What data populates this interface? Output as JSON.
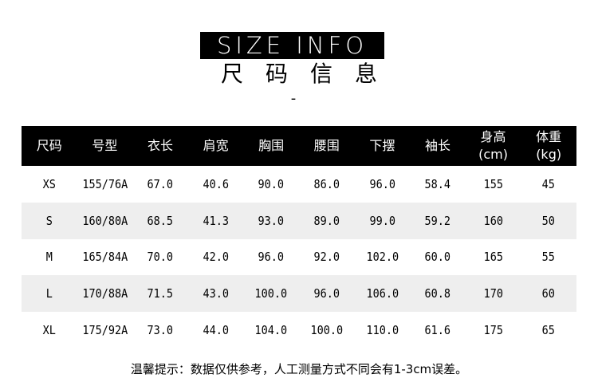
{
  "title_en": "SIZE INFO",
  "title_cn": "尺码信息",
  "separator": "-",
  "table": {
    "headers": [
      {
        "line1": "尺码",
        "line2": ""
      },
      {
        "line1": "号型",
        "line2": ""
      },
      {
        "line1": "衣长",
        "line2": ""
      },
      {
        "line1": "肩宽",
        "line2": ""
      },
      {
        "line1": "胸围",
        "line2": ""
      },
      {
        "line1": "腰围",
        "line2": ""
      },
      {
        "line1": "下摆",
        "line2": ""
      },
      {
        "line1": "袖长",
        "line2": ""
      },
      {
        "line1": "身高",
        "line2": "(cm)"
      },
      {
        "line1": "体重",
        "line2": "(kg)"
      }
    ],
    "rows": [
      [
        "XS",
        "155/76A",
        "67.0",
        "40.6",
        "90.0",
        "86.0",
        "96.0",
        "58.4",
        "155",
        "45"
      ],
      [
        "S",
        "160/80A",
        "68.5",
        "41.3",
        "93.0",
        "89.0",
        "99.0",
        "59.2",
        "160",
        "50"
      ],
      [
        "M",
        "165/84A",
        "70.0",
        "42.0",
        "96.0",
        "92.0",
        "102.0",
        "60.0",
        "165",
        "55"
      ],
      [
        "L",
        "170/88A",
        "71.5",
        "43.0",
        "100.0",
        "96.0",
        "106.0",
        "60.8",
        "170",
        "60"
      ],
      [
        "XL",
        "175/92A",
        "73.0",
        "44.0",
        "104.0",
        "100.0",
        "110.0",
        "61.6",
        "175",
        "65"
      ]
    ]
  },
  "footer_note": "温馨提示：数据仅供参考，人工测量方式不同会有1-3cm误差。",
  "colors": {
    "header_bg": "#000000",
    "alt_row_bg": "#eeeeee"
  }
}
